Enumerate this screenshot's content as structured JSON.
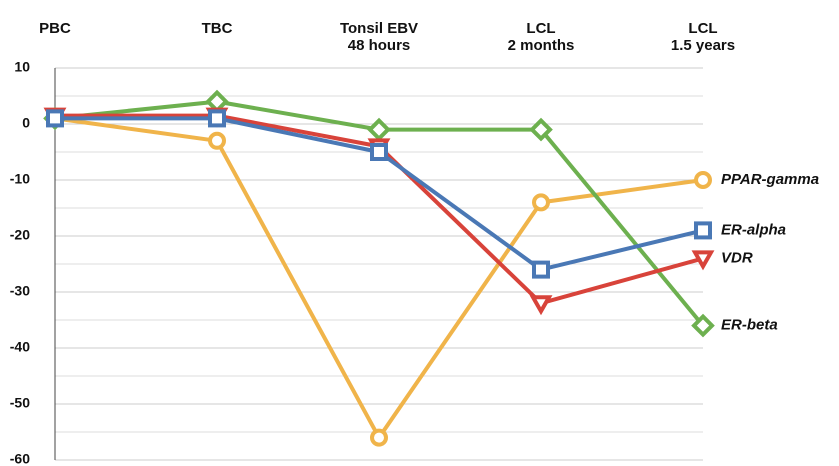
{
  "chart_data": {
    "type": "line",
    "categories": [
      "PBC",
      "TBC",
      "Tonsil EBV\n48 hours",
      "LCL\n2 months",
      "LCL\n1.5 years"
    ],
    "series": [
      {
        "name": "PPAR-gamma",
        "color": "#f0b44a",
        "marker": "circle",
        "values": [
          1,
          -3,
          -56,
          -14,
          -10
        ]
      },
      {
        "name": "ER-beta",
        "color": "#6db04f",
        "marker": "diamond",
        "values": [
          1,
          4,
          -1,
          -1,
          -36
        ]
      },
      {
        "name": "VDR",
        "color": "#d8433a",
        "marker": "triangle-down",
        "values": [
          1.5,
          1.5,
          -4,
          -32,
          -24
        ]
      },
      {
        "name": "ER-alpha",
        "color": "#4a78b5",
        "marker": "square",
        "values": [
          1,
          1,
          -5,
          -26,
          -19
        ]
      }
    ],
    "ylim": [
      -60,
      10
    ],
    "yticks": [
      10,
      0,
      -10,
      -20,
      -30,
      -40,
      -50,
      -60
    ],
    "minor_grid": [
      5,
      -5,
      -15,
      -25,
      -35,
      -45,
      -55
    ],
    "grid": true
  }
}
